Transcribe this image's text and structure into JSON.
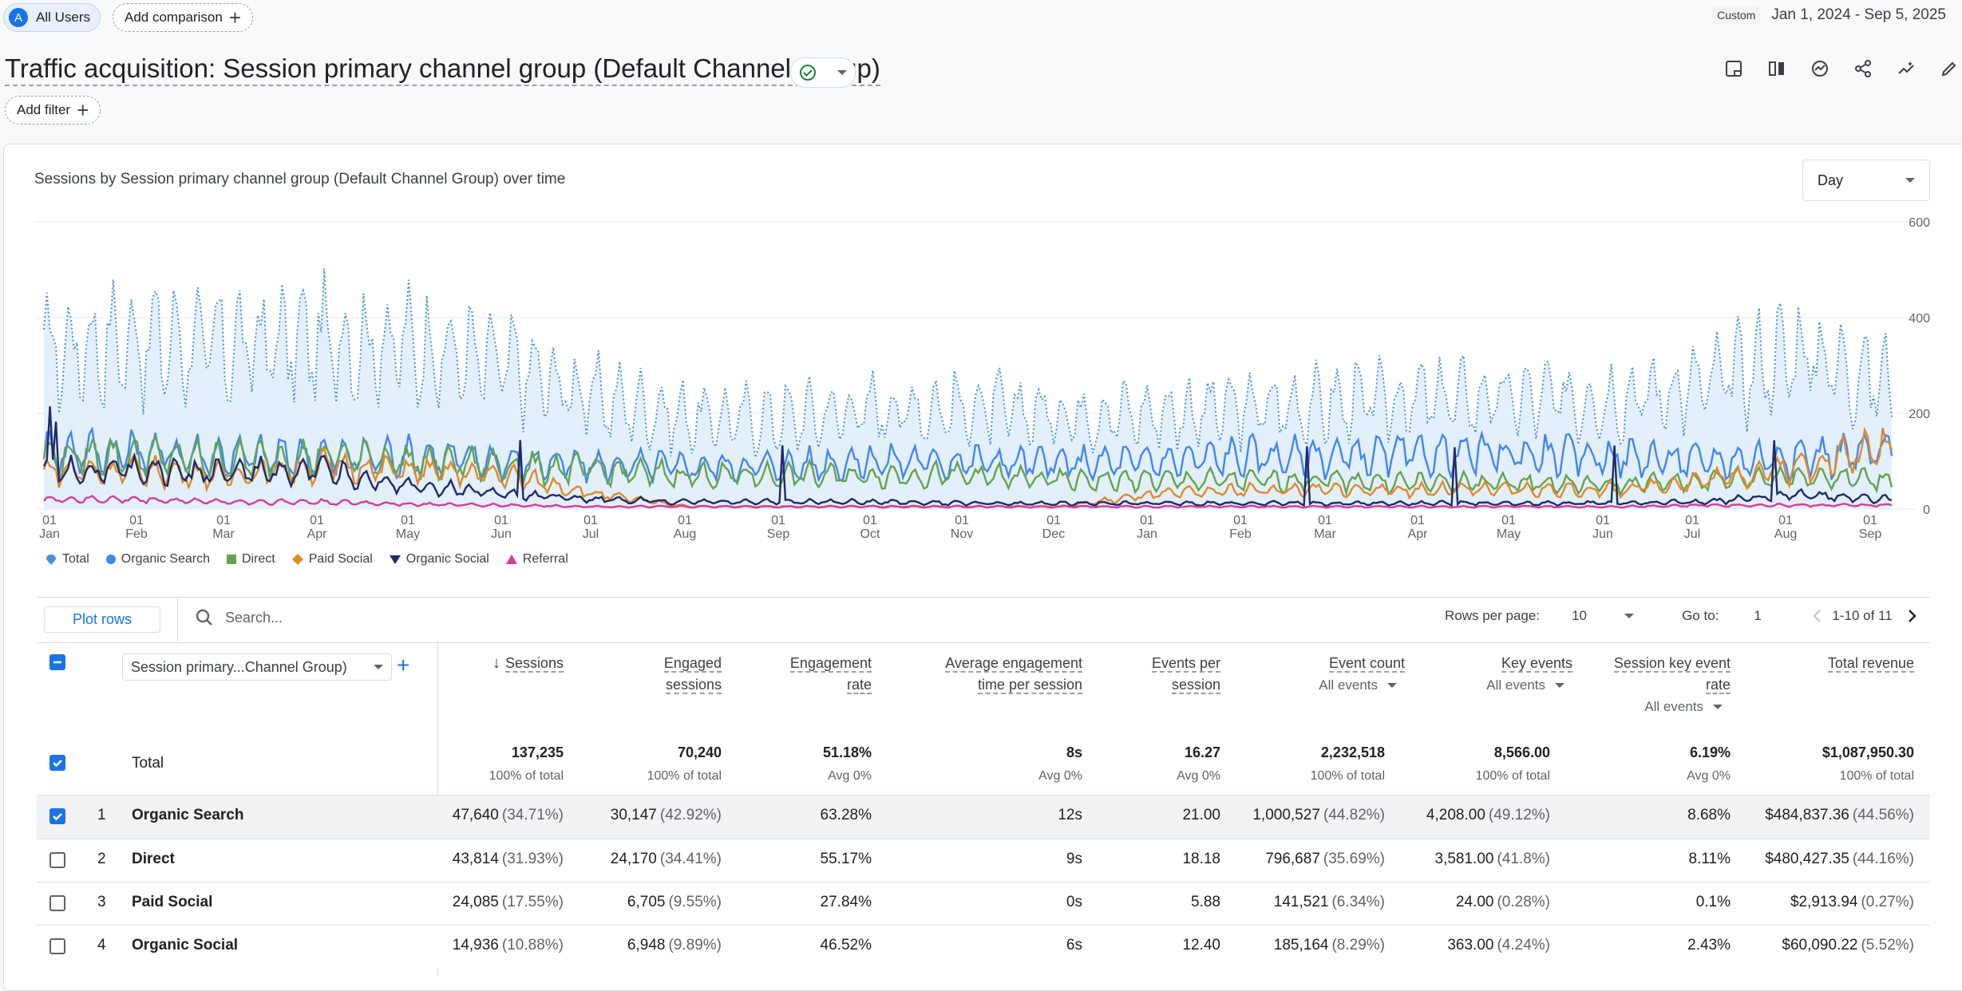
{
  "header": {
    "segment_avatar": "A",
    "segment_label": "All Users",
    "add_comparison": "Add comparison",
    "date_badge": "Custom",
    "date_range": "Jan 1, 2024 - Sep 5, 2025"
  },
  "report": {
    "title": "Traffic acquisition: Session primary channel group (Default Channel Group)",
    "add_filter": "Add filter"
  },
  "chart_card": {
    "title": "Sessions by Session primary channel group (Default Channel Group) over time",
    "granularity": "Day"
  },
  "chart_data": {
    "type": "line",
    "title": "Sessions by Session primary channel group (Default Channel Group) over time",
    "ylim": [
      0,
      600
    ],
    "y_ticks": [
      "600",
      "400",
      "200",
      "0"
    ],
    "x_ticks": [
      {
        "d": "01",
        "m": "Jan"
      },
      {
        "d": "01",
        "m": "Feb"
      },
      {
        "d": "01",
        "m": "Mar"
      },
      {
        "d": "01",
        "m": "Apr"
      },
      {
        "d": "01",
        "m": "May"
      },
      {
        "d": "01",
        "m": "Jun"
      },
      {
        "d": "01",
        "m": "Jul"
      },
      {
        "d": "01",
        "m": "Aug"
      },
      {
        "d": "01",
        "m": "Sep"
      },
      {
        "d": "01",
        "m": "Oct"
      },
      {
        "d": "01",
        "m": "Nov"
      },
      {
        "d": "01",
        "m": "Dec"
      },
      {
        "d": "01",
        "m": "Jan"
      },
      {
        "d": "01",
        "m": "Feb"
      },
      {
        "d": "01",
        "m": "Mar"
      },
      {
        "d": "01",
        "m": "Apr"
      },
      {
        "d": "01",
        "m": "May"
      },
      {
        "d": "01",
        "m": "Jun"
      },
      {
        "d": "01",
        "m": "Jul"
      },
      {
        "d": "01",
        "m": "Aug"
      },
      {
        "d": "01",
        "m": "Sep"
      }
    ],
    "series_monthly_approx": [
      {
        "name": "Total",
        "color": "#4a90d9",
        "values": [
          330,
          350,
          340,
          350,
          340,
          300,
          230,
          190,
          190,
          210,
          210,
          200,
          200,
          210,
          220,
          230,
          230,
          230,
          260,
          330,
          260
        ]
      },
      {
        "name": "Organic Search",
        "color": "#4285f4",
        "values": [
          120,
          120,
          110,
          110,
          110,
          100,
          90,
          90,
          90,
          100,
          100,
          95,
          100,
          110,
          110,
          115,
          115,
          110,
          100,
          110,
          120
        ]
      },
      {
        "name": "Direct",
        "color": "#66a34d",
        "values": [
          110,
          110,
          100,
          110,
          100,
          90,
          80,
          70,
          70,
          70,
          70,
          60,
          60,
          60,
          60,
          55,
          55,
          50,
          60,
          70,
          60
        ]
      },
      {
        "name": "Paid Social",
        "color": "#e08a2c",
        "values": [
          80,
          80,
          70,
          90,
          80,
          70,
          30,
          5,
          5,
          5,
          5,
          5,
          30,
          40,
          40,
          40,
          40,
          40,
          60,
          90,
          130
        ]
      },
      {
        "name": "Organic Social",
        "color": "#1f2a6b",
        "values": [
          80,
          80,
          75,
          80,
          50,
          30,
          20,
          15,
          15,
          15,
          12,
          12,
          12,
          12,
          12,
          12,
          12,
          12,
          15,
          30,
          20
        ]
      },
      {
        "name": "Referral",
        "color": "#d63c9a",
        "values": [
          20,
          20,
          15,
          15,
          10,
          8,
          5,
          5,
          5,
          5,
          5,
          5,
          5,
          5,
          5,
          5,
          5,
          5,
          8,
          8,
          8
        ]
      }
    ]
  },
  "legend": [
    "Total",
    "Organic Search",
    "Direct",
    "Paid Social",
    "Organic Social",
    "Referral"
  ],
  "table_toolbar": {
    "plot_rows": "Plot rows",
    "search_placeholder": "Search...",
    "rows_per_page_label": "Rows per page:",
    "rows_per_page": "10",
    "goto_label": "Go to:",
    "goto_value": "1",
    "range": "1-10 of 11"
  },
  "table": {
    "dimension": "Session primary...Channel Group)",
    "headers": {
      "sessions": "Sessions",
      "engaged_a": "Engaged",
      "engaged_b": "sessions",
      "rate_a": "Engagement",
      "rate_b": "rate",
      "avg_a": "Average engagement",
      "avg_b": "time per session",
      "epsa": "Events per",
      "epsb": "session",
      "evc": "Event count",
      "evc_sub": "All events",
      "ke": "Key events",
      "ke_sub": "All events",
      "skr_a": "Session key event",
      "skr_b": "rate",
      "skr_sub": "All events",
      "rev": "Total revenue"
    },
    "total": {
      "label": "Total",
      "sessions": "137,235",
      "sessions_sub": "100% of total",
      "engaged": "70,240",
      "engaged_sub": "100% of total",
      "rate": "51.18%",
      "rate_sub": "Avg 0%",
      "avg": "8s",
      "avg_sub": "Avg 0%",
      "eps": "16.27",
      "eps_sub": "Avg 0%",
      "evc": "2,232,518",
      "evc_sub": "100% of total",
      "ke": "8,566.00",
      "ke_sub": "100% of total",
      "skr": "6.19%",
      "skr_sub": "Avg 0%",
      "rev": "$1,087,950.30",
      "rev_sub": "100% of total"
    },
    "rows": [
      {
        "idx": "1",
        "name": "Organic Search",
        "sessions": "47,640",
        "sessions_p": "(34.71%)",
        "engaged": "30,147",
        "engaged_p": "(42.92%)",
        "rate": "63.28%",
        "avg": "12s",
        "eps": "21.00",
        "evc": "1,000,527",
        "evc_p": "(44.82%)",
        "ke": "4,208.00",
        "ke_p": "(49.12%)",
        "skr": "8.68%",
        "rev": "$484,837.36",
        "rev_p": "(44.56%)"
      },
      {
        "idx": "2",
        "name": "Direct",
        "sessions": "43,814",
        "sessions_p": "(31.93%)",
        "engaged": "24,170",
        "engaged_p": "(34.41%)",
        "rate": "55.17%",
        "avg": "9s",
        "eps": "18.18",
        "evc": "796,687",
        "evc_p": "(35.69%)",
        "ke": "3,581.00",
        "ke_p": "(41.8%)",
        "skr": "8.11%",
        "rev": "$480,427.35",
        "rev_p": "(44.16%)"
      },
      {
        "idx": "3",
        "name": "Paid Social",
        "sessions": "24,085",
        "sessions_p": "(17.55%)",
        "engaged": "6,705",
        "engaged_p": "(9.55%)",
        "rate": "27.84%",
        "avg": "0s",
        "eps": "5.88",
        "evc": "141,521",
        "evc_p": "(6.34%)",
        "ke": "24.00",
        "ke_p": "(0.28%)",
        "skr": "0.1%",
        "rev": "$2,913.94",
        "rev_p": "(0.27%)"
      },
      {
        "idx": "4",
        "name": "Organic Social",
        "sessions": "14,936",
        "sessions_p": "(10.88%)",
        "engaged": "6,948",
        "engaged_p": "(9.89%)",
        "rate": "46.52%",
        "avg": "6s",
        "eps": "12.40",
        "evc": "185,164",
        "evc_p": "(8.29%)",
        "ke": "363.00",
        "ke_p": "(4.24%)",
        "skr": "2.43%",
        "rev": "$60,090.22",
        "rev_p": "(5.52%)"
      }
    ]
  }
}
